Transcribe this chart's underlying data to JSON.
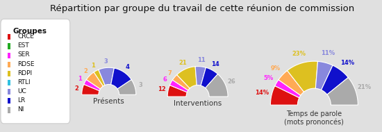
{
  "title": "Répartition par groupe du travail de cette réunion de commission",
  "background_color": "#e0e0e0",
  "groups": [
    "CRCE",
    "EST",
    "SER",
    "RDSE",
    "RDPI",
    "RTLI",
    "UC",
    "LR",
    "NI"
  ],
  "colors": [
    "#dd1111",
    "#22aa22",
    "#ff22ff",
    "#ffaa55",
    "#ddc020",
    "#30c0e0",
    "#8888dd",
    "#1010cc",
    "#aaaaaa"
  ],
  "presences": [
    2,
    0,
    1,
    2,
    1,
    0,
    3,
    4,
    3
  ],
  "interventions": [
    12,
    0,
    6,
    7,
    21,
    0,
    11,
    14,
    26
  ],
  "temps_parole_pct": [
    14,
    0,
    5,
    9,
    23,
    0,
    11,
    14,
    21
  ],
  "legend_title": "Groupes",
  "chart_labels": [
    "Présents",
    "Interventions",
    "Temps de parole\n(mots prononcés)"
  ],
  "r_out": 1.0,
  "r_in": 0.38,
  "r_label": 1.22
}
